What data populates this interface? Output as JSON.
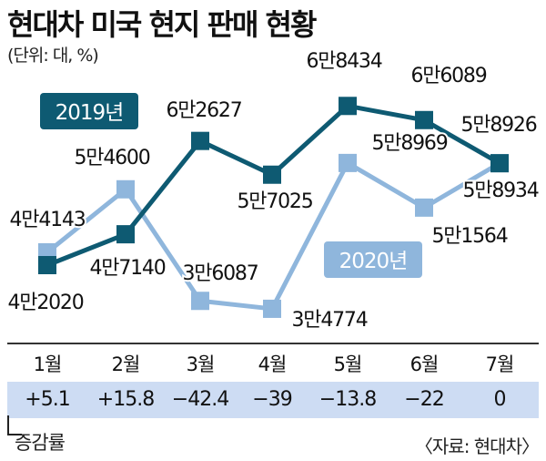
{
  "title": "현대차 미국 현지 판매 현황",
  "unit_note": "(단위: 대, %)",
  "source_note": "〈자료: 현대차〉",
  "growth_label": "증감률",
  "colors": {
    "series_2019": "#0e5a72",
    "series_2020": "#8fb6dc",
    "growth_band": "#cddcf3"
  },
  "chart_data": {
    "type": "line",
    "categories": [
      "1월",
      "2월",
      "3월",
      "4월",
      "5월",
      "6월",
      "7월"
    ],
    "series": [
      {
        "name": "2019년",
        "values": [
          42020,
          47140,
          62627,
          57025,
          68434,
          66089,
          58926
        ],
        "labels": [
          "4만2020",
          "4만7140",
          "6만2627",
          "5만7025",
          "6만8434",
          "6만6089",
          "5만8926"
        ]
      },
      {
        "name": "2020년",
        "values": [
          44143,
          54600,
          36087,
          34774,
          58969,
          51564,
          58934
        ],
        "labels": [
          "4만4143",
          "5만4600",
          "3만6087",
          "3만4774",
          "5만8969",
          "5만1564",
          "5만8934"
        ]
      }
    ],
    "growth_rates": [
      "+5.1",
      "+15.8",
      "−42.4",
      "−39",
      "−13.8",
      "−22",
      "0"
    ],
    "ylim": [
      30000,
      72000
    ],
    "grid": false
  }
}
